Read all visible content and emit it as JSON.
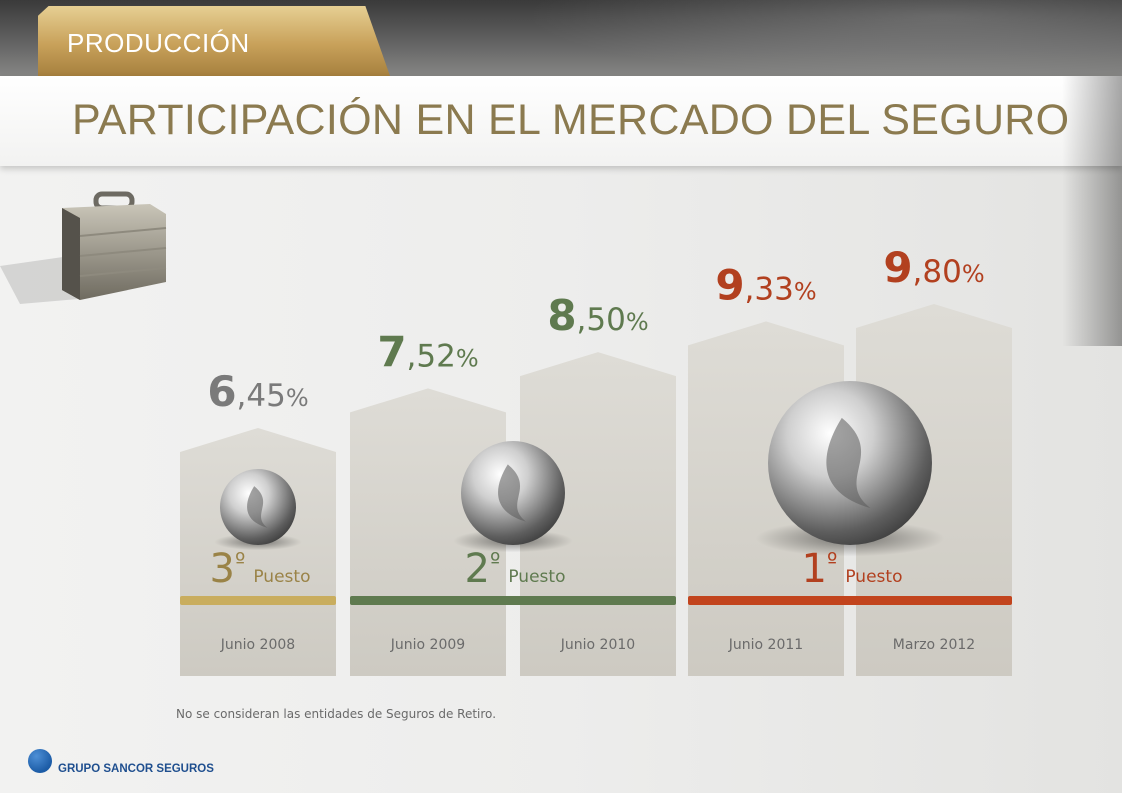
{
  "header": {
    "section_tab": "PRODUCCIÓN",
    "title": "PARTICIPACIÓN EN EL MERCADO DEL SEGURO"
  },
  "chart_data": {
    "type": "bar",
    "title": "",
    "categories": [
      "Junio 2008",
      "Junio 2009",
      "Junio 2010",
      "Junio 2011",
      "Marzo 2012"
    ],
    "values": [
      6.45,
      7.52,
      8.5,
      9.33,
      9.8
    ],
    "value_labels": [
      {
        "int": "6",
        "dec": ",45",
        "unit": "%"
      },
      {
        "int": "7",
        "dec": ",52",
        "unit": "%"
      },
      {
        "int": "8",
        "dec": ",50",
        "unit": "%"
      },
      {
        "int": "9",
        "dec": ",33",
        "unit": "%"
      },
      {
        "int": "9",
        "dec": ",80",
        "unit": "%"
      }
    ],
    "ranks": [
      {
        "number": "3",
        "ordinal": "º",
        "label": "Puesto",
        "covers": [
          0
        ],
        "color": "#9a8347",
        "bar_color": "#c9ad5e"
      },
      {
        "number": "2",
        "ordinal": "º",
        "label": "Puesto",
        "covers": [
          1,
          2
        ],
        "color": "#5f7a4f",
        "bar_color": "#5f7a4f"
      },
      {
        "number": "1",
        "ordinal": "º",
        "label": "Puesto",
        "covers": [
          3,
          4
        ],
        "color": "#b2401f",
        "bar_color": "#c2441d"
      }
    ],
    "label_colors": [
      "#7a7a7a",
      "#5f7a4f",
      "#5f7a4f",
      "#b2401f",
      "#b2401f"
    ]
  },
  "footnote": "No se consideran las entidades de Seguros de Retiro.",
  "logo": {
    "text": "GRUPO SANCOR SEGUROS",
    "icon": "sancor-flame-icon"
  }
}
